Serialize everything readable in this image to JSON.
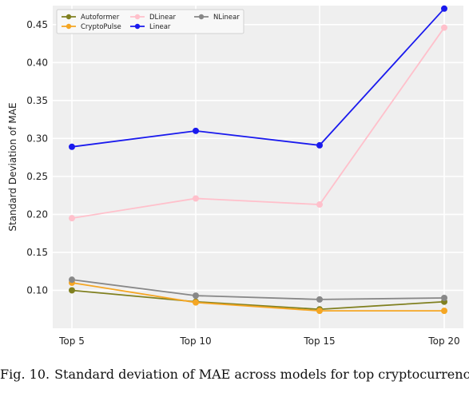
{
  "chart_data": {
    "type": "line",
    "categories": [
      "Top 5",
      "Top 10",
      "Top 15",
      "Top 20"
    ],
    "ylabel": "Standard Deviation of MAE",
    "xlabel": "",
    "ylim": [
      0.05,
      0.475
    ],
    "yticks": [
      "0.10",
      "0.15",
      "0.20",
      "0.25",
      "0.30",
      "0.35",
      "0.40",
      "0.45"
    ],
    "grid": true,
    "legend_position": "top-left",
    "series": [
      {
        "name": "Autoformer",
        "color": "#808020",
        "values": [
          0.1,
          0.085,
          0.075,
          0.085
        ]
      },
      {
        "name": "CryptoPulse",
        "color": "#f5a623",
        "values": [
          0.11,
          0.084,
          0.073,
          0.073
        ]
      },
      {
        "name": "DLinear",
        "color": "#ffc0cb",
        "values": [
          0.195,
          0.221,
          0.213,
          0.446
        ]
      },
      {
        "name": "Linear",
        "color": "#1a1aee",
        "values": [
          0.289,
          0.31,
          0.291,
          0.471
        ]
      },
      {
        "name": "NLinear",
        "color": "#888888",
        "values": [
          0.114,
          0.093,
          0.088,
          0.09
        ]
      }
    ]
  },
  "caption": {
    "label": "Fig. 10.",
    "text": "Standard deviation of MAE across models for top cryptocurrencies."
  }
}
